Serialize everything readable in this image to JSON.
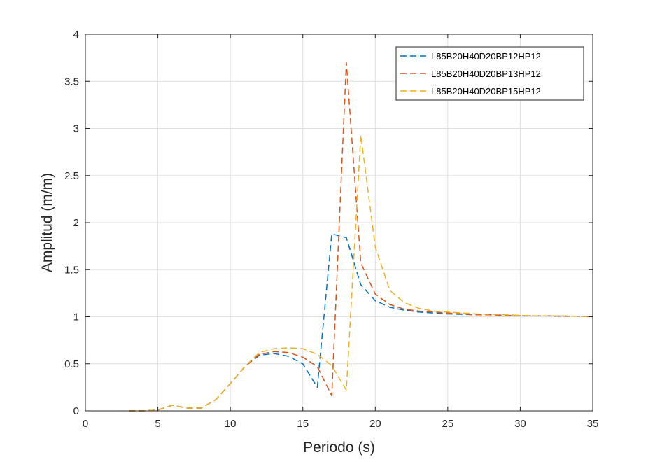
{
  "chart_data": {
    "type": "line",
    "title": "",
    "xlabel": "Periodo (s)",
    "ylabel": "Amplitud (m/m)",
    "xlim": [
      0,
      35
    ],
    "ylim": [
      0,
      4
    ],
    "xticks": [
      0,
      5,
      10,
      15,
      20,
      25,
      30,
      35
    ],
    "yticks": [
      0,
      0.5,
      1,
      1.5,
      2,
      2.5,
      3,
      3.5,
      4
    ],
    "xtick_labels": [
      "0",
      "5",
      "10",
      "15",
      "20",
      "25",
      "30",
      "35"
    ],
    "ytick_labels": [
      "0",
      "0.5",
      "1",
      "1.5",
      "2",
      "2.5",
      "3",
      "3.5",
      "4"
    ],
    "grid": true,
    "legend_position": "top-right",
    "line_style": "dashed",
    "series": [
      {
        "name": "L85B20H40D20BP12HP12",
        "color": "#0072BD",
        "x": [
          3,
          4,
          5,
          6,
          7,
          8,
          9,
          10,
          11,
          12,
          13,
          14,
          15,
          16,
          17,
          18,
          19,
          20,
          21,
          22,
          23,
          24,
          25,
          26,
          27,
          28,
          29,
          30,
          31,
          32,
          33,
          34,
          35
        ],
        "y": [
          0,
          0,
          0.01,
          0.06,
          0.03,
          0.03,
          0.12,
          0.29,
          0.47,
          0.59,
          0.61,
          0.58,
          0.5,
          0.25,
          1.88,
          1.84,
          1.34,
          1.17,
          1.1,
          1.07,
          1.05,
          1.04,
          1.03,
          1.025,
          1.02,
          1.02,
          1.015,
          1.01,
          1.01,
          1.01,
          1.005,
          1.005,
          1.0
        ]
      },
      {
        "name": "L85B20H40D20BP13HP12",
        "color": "#D95319",
        "x": [
          3,
          4,
          5,
          6,
          7,
          8,
          9,
          10,
          11,
          12,
          13,
          14,
          15,
          16,
          17,
          18,
          19,
          20,
          21,
          22,
          23,
          24,
          25,
          26,
          27,
          28,
          29,
          30,
          31,
          32,
          33,
          34,
          35
        ],
        "y": [
          0,
          0,
          0.01,
          0.06,
          0.03,
          0.03,
          0.12,
          0.29,
          0.47,
          0.6,
          0.63,
          0.62,
          0.57,
          0.47,
          0.16,
          3.7,
          1.57,
          1.24,
          1.13,
          1.08,
          1.06,
          1.05,
          1.04,
          1.03,
          1.02,
          1.02,
          1.015,
          1.01,
          1.01,
          1.01,
          1.005,
          1.005,
          1.0
        ]
      },
      {
        "name": "L85B20H40D20BP15HP12",
        "color": "#EDB120",
        "x": [
          3,
          4,
          5,
          6,
          7,
          8,
          9,
          10,
          11,
          12,
          13,
          14,
          15,
          16,
          17,
          18,
          19,
          20,
          21,
          22,
          23,
          24,
          25,
          26,
          27,
          28,
          29,
          30,
          31,
          32,
          33,
          34,
          35
        ],
        "y": [
          0,
          0,
          0.01,
          0.06,
          0.03,
          0.03,
          0.12,
          0.29,
          0.47,
          0.62,
          0.66,
          0.67,
          0.66,
          0.6,
          0.48,
          0.22,
          2.93,
          1.74,
          1.28,
          1.15,
          1.09,
          1.06,
          1.05,
          1.04,
          1.03,
          1.025,
          1.02,
          1.015,
          1.01,
          1.01,
          1.01,
          1.005,
          1.0
        ]
      }
    ]
  }
}
